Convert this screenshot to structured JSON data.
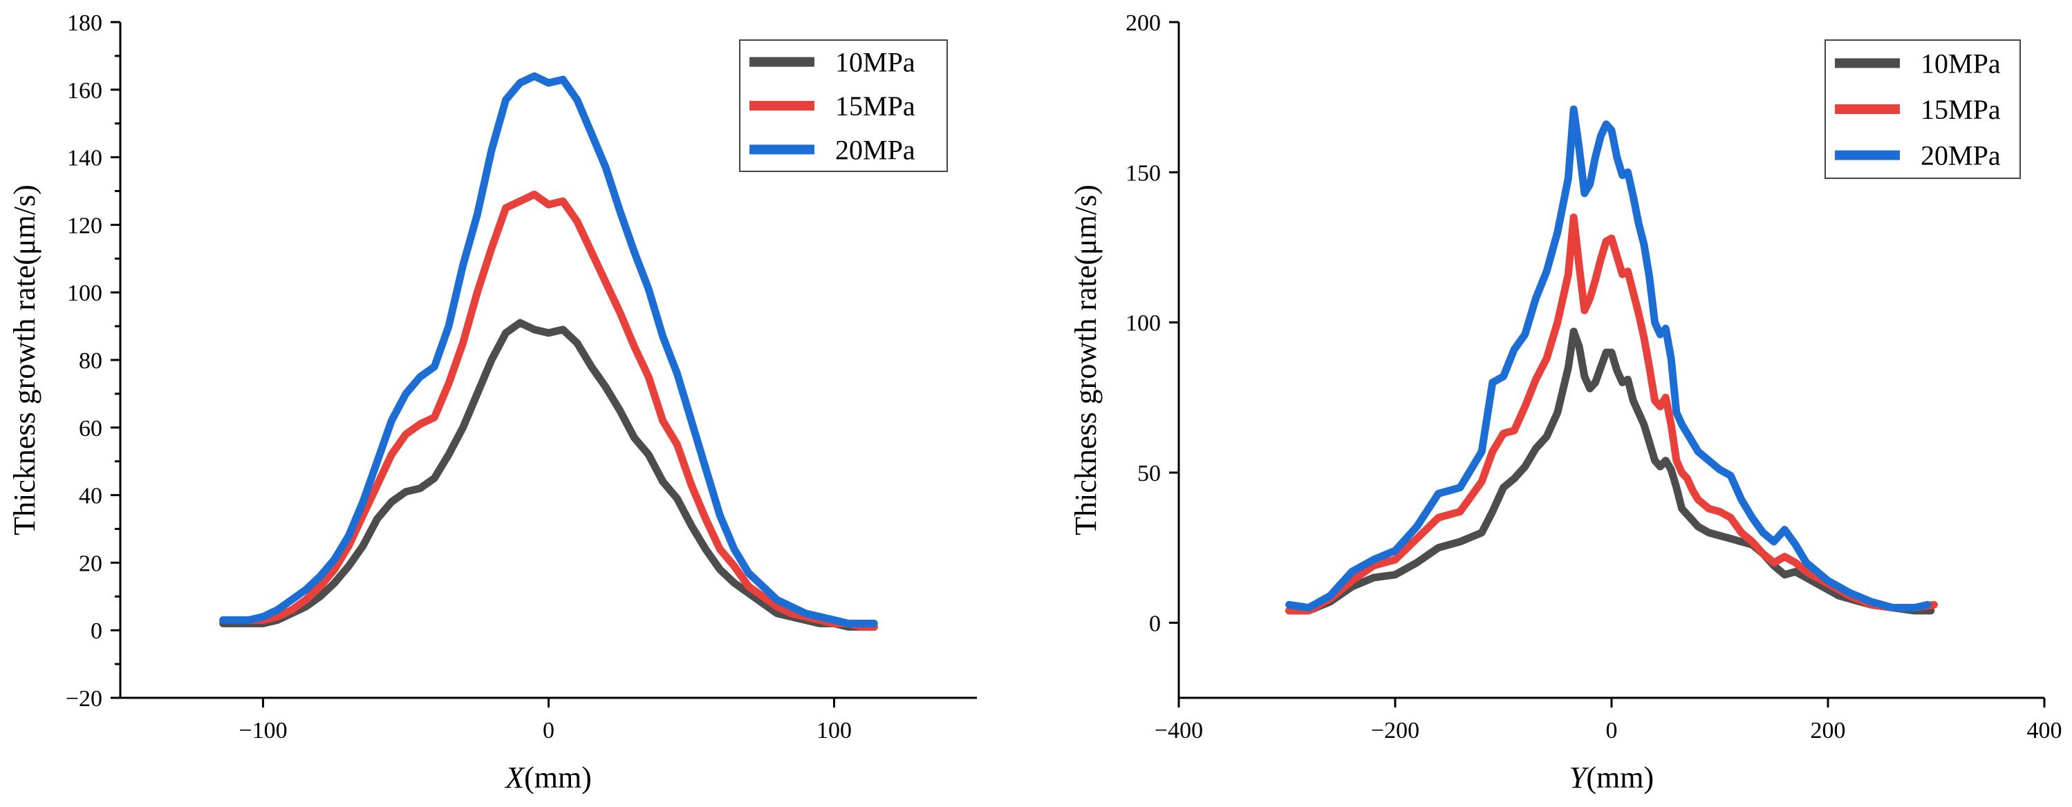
{
  "chart_data": [
    {
      "type": "line",
      "xlabel_italic": "X",
      "xlabel_unit": "(mm)",
      "ylabel": "Thickness growth rate(μm/s)",
      "xlim": [
        -150,
        150
      ],
      "ylim": [
        -20,
        180
      ],
      "xticks": [
        -100,
        0,
        100
      ],
      "xtick_labels": [
        "−100",
        "0",
        "100"
      ],
      "yticks": [
        -20,
        0,
        20,
        40,
        60,
        80,
        100,
        120,
        140,
        160,
        180
      ],
      "ytick_labels": [
        "−20",
        "0",
        "20",
        "40",
        "60",
        "80",
        "100",
        "120",
        "140",
        "160",
        "180"
      ],
      "legend_position": "top-right",
      "grid": false,
      "series": [
        {
          "name": "10MPa",
          "color": "#4d4d4d",
          "x": [
            -114,
            -105,
            -100,
            -95,
            -90,
            -85,
            -80,
            -75,
            -70,
            -65,
            -60,
            -55,
            -50,
            -45,
            -40,
            -35,
            -30,
            -25,
            -20,
            -15,
            -10,
            -5,
            0,
            5,
            10,
            15,
            20,
            25,
            30,
            35,
            40,
            45,
            50,
            55,
            60,
            65,
            70,
            75,
            80,
            85,
            90,
            95,
            100,
            105,
            110,
            114
          ],
          "y": [
            2,
            2,
            2,
            3,
            5,
            7,
            10,
            14,
            19,
            25,
            33,
            38,
            41,
            42,
            45,
            52,
            60,
            70,
            80,
            88,
            91,
            89,
            88,
            89,
            85,
            78,
            72,
            65,
            57,
            52,
            44,
            39,
            31,
            24,
            18,
            14,
            11,
            8,
            5,
            4,
            3,
            2,
            2,
            1,
            1,
            1
          ]
        },
        {
          "name": "15MPa",
          "color": "#e8403a",
          "x": [
            -114,
            -105,
            -100,
            -95,
            -90,
            -85,
            -80,
            -75,
            -70,
            -65,
            -60,
            -55,
            -50,
            -45,
            -40,
            -35,
            -30,
            -25,
            -20,
            -15,
            -10,
            -5,
            0,
            5,
            10,
            15,
            20,
            25,
            30,
            35,
            40,
            45,
            50,
            55,
            60,
            65,
            70,
            75,
            80,
            85,
            90,
            95,
            100,
            105,
            110,
            114
          ],
          "y": [
            3,
            3,
            3,
            4,
            6,
            9,
            13,
            18,
            25,
            34,
            43,
            52,
            58,
            61,
            63,
            73,
            85,
            100,
            113,
            125,
            127,
            129,
            126,
            127,
            121,
            112,
            103,
            94,
            84,
            75,
            62,
            55,
            43,
            33,
            24,
            19,
            13,
            10,
            7,
            5,
            4,
            3,
            2,
            2,
            1,
            1
          ]
        },
        {
          "name": "20MPa",
          "color": "#1c6ed4",
          "x": [
            -114,
            -105,
            -100,
            -95,
            -90,
            -85,
            -80,
            -75,
            -70,
            -65,
            -60,
            -55,
            -50,
            -45,
            -40,
            -35,
            -30,
            -25,
            -20,
            -15,
            -10,
            -5,
            0,
            5,
            10,
            15,
            20,
            25,
            30,
            35,
            40,
            45,
            50,
            55,
            60,
            65,
            70,
            75,
            80,
            85,
            90,
            95,
            100,
            105,
            110,
            114
          ],
          "y": [
            3,
            3,
            4,
            6,
            9,
            12,
            16,
            21,
            28,
            38,
            50,
            62,
            70,
            75,
            78,
            90,
            108,
            123,
            142,
            157,
            162,
            164,
            162,
            163,
            157,
            147,
            137,
            124,
            112,
            101,
            87,
            76,
            62,
            48,
            34,
            24,
            17,
            13,
            9,
            7,
            5,
            4,
            3,
            2,
            2,
            2
          ]
        }
      ]
    },
    {
      "type": "line",
      "xlabel_italic": "Y",
      "xlabel_unit": "(mm)",
      "ylabel": "Thickness growth rate(μm/s)",
      "xlim": [
        -400,
        400
      ],
      "ylim": [
        -25,
        200
      ],
      "xticks": [
        -400,
        -200,
        0,
        200,
        400
      ],
      "xtick_labels": [
        "−400",
        "−200",
        "0",
        "200",
        "400"
      ],
      "yticks": [
        0,
        50,
        100,
        150,
        200
      ],
      "ytick_labels": [
        "0",
        "50",
        "100",
        "150",
        "200"
      ],
      "legend_position": "top-right",
      "grid": false,
      "series": [
        {
          "name": "10MPa",
          "color": "#4d4d4d",
          "x": [
            -298,
            -280,
            -260,
            -240,
            -220,
            -200,
            -180,
            -160,
            -140,
            -120,
            -110,
            -100,
            -90,
            -80,
            -70,
            -60,
            -50,
            -40,
            -35,
            -30,
            -25,
            -20,
            -15,
            -10,
            -5,
            0,
            5,
            10,
            15,
            20,
            25,
            30,
            35,
            40,
            45,
            50,
            55,
            60,
            65,
            70,
            75,
            80,
            90,
            100,
            110,
            120,
            130,
            140,
            150,
            160,
            170,
            180,
            190,
            200,
            210,
            220,
            240,
            260,
            280,
            295
          ],
          "y": [
            4,
            4,
            7,
            12,
            15,
            16,
            20,
            25,
            27,
            30,
            37,
            45,
            48,
            52,
            58,
            62,
            70,
            85,
            97,
            92,
            82,
            78,
            80,
            85,
            90,
            90,
            84,
            80,
            81,
            74,
            70,
            66,
            60,
            54,
            52,
            54,
            51,
            45,
            38,
            36,
            34,
            32,
            30,
            29,
            28,
            27,
            26,
            23,
            19,
            16,
            17,
            15,
            13,
            11,
            9,
            8,
            6,
            5,
            4,
            4
          ]
        },
        {
          "name": "15MPa",
          "color": "#e8403a",
          "x": [
            -298,
            -280,
            -260,
            -240,
            -220,
            -200,
            -180,
            -160,
            -140,
            -120,
            -110,
            -100,
            -90,
            -80,
            -70,
            -60,
            -50,
            -40,
            -35,
            -30,
            -25,
            -20,
            -15,
            -10,
            -5,
            0,
            5,
            10,
            15,
            20,
            25,
            30,
            35,
            40,
            45,
            50,
            55,
            60,
            65,
            70,
            75,
            80,
            90,
            100,
            110,
            120,
            130,
            140,
            150,
            160,
            170,
            180,
            190,
            200,
            210,
            220,
            240,
            260,
            280,
            298
          ],
          "y": [
            4,
            4,
            8,
            14,
            19,
            21,
            28,
            35,
            37,
            47,
            57,
            63,
            64,
            72,
            81,
            88,
            100,
            116,
            135,
            119,
            104,
            108,
            114,
            121,
            127,
            128,
            122,
            116,
            117,
            110,
            103,
            95,
            85,
            74,
            72,
            75,
            66,
            54,
            50,
            48,
            44,
            41,
            38,
            37,
            35,
            30,
            27,
            23,
            20,
            22,
            20,
            17,
            15,
            13,
            11,
            9,
            6,
            5,
            5,
            6
          ]
        },
        {
          "name": "20MPa",
          "color": "#1c6ed4",
          "x": [
            -298,
            -280,
            -260,
            -240,
            -220,
            -200,
            -180,
            -160,
            -140,
            -120,
            -110,
            -100,
            -90,
            -80,
            -70,
            -60,
            -50,
            -40,
            -35,
            -30,
            -25,
            -20,
            -15,
            -10,
            -5,
            0,
            5,
            10,
            15,
            20,
            25,
            30,
            35,
            40,
            45,
            50,
            55,
            60,
            65,
            70,
            75,
            80,
            90,
            100,
            110,
            120,
            130,
            140,
            150,
            160,
            170,
            180,
            190,
            200,
            210,
            220,
            240,
            260,
            280,
            292
          ],
          "y": [
            6,
            5,
            9,
            17,
            21,
            24,
            32,
            43,
            45,
            57,
            80,
            82,
            91,
            96,
            108,
            117,
            130,
            148,
            171,
            158,
            143,
            146,
            155,
            162,
            166,
            164,
            155,
            149,
            150,
            142,
            133,
            126,
            115,
            100,
            96,
            98,
            88,
            70,
            66,
            63,
            60,
            57,
            54,
            51,
            49,
            41,
            35,
            30,
            27,
            31,
            26,
            20,
            17,
            14,
            12,
            10,
            7,
            5,
            5,
            6
          ]
        }
      ]
    }
  ]
}
